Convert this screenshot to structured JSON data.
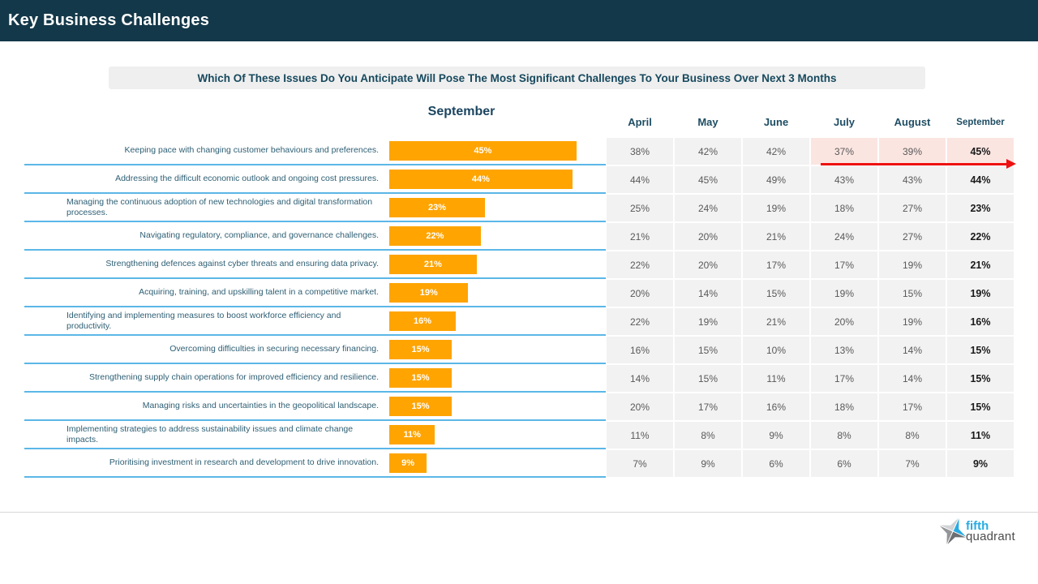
{
  "header": {
    "title": "Key Business Challenges"
  },
  "question": {
    "text": "Which Of These Issues Do You Anticipate Will Pose The Most Significant Challenges To Your Business Over Next 3 Months"
  },
  "chart": {
    "title": "September"
  },
  "chart_data": {
    "type": "bar",
    "orientation": "horizontal",
    "title": "September",
    "unit": "%",
    "xlim": [
      0,
      52
    ],
    "bar_color": "#FFA400",
    "categories": [
      "Keeping pace with changing customer behaviours and preferences.",
      "Addressing the difficult economic outlook and ongoing cost pressures.",
      "Managing the continuous adoption of new technologies and digital transformation processes.",
      "Navigating regulatory, compliance, and governance challenges.",
      "Strengthening defences against cyber threats and ensuring data privacy.",
      "Acquiring, training, and upskilling talent in a competitive market.",
      "Identifying and implementing measures to boost workforce efficiency and productivity.",
      "Overcoming difficulties in securing necessary financing.",
      "Strengthening supply chain operations for improved efficiency and resilience.",
      "Managing risks and uncertainties in the geopolitical landscape.",
      "Implementing strategies to address sustainability issues and climate change impacts.",
      "Prioritising investment in research and development to drive innovation."
    ],
    "values": [
      45,
      44,
      23,
      22,
      21,
      19,
      16,
      15,
      15,
      15,
      11,
      9
    ],
    "value_labels": [
      "45%",
      "44%",
      "23%",
      "22%",
      "21%",
      "19%",
      "16%",
      "15%",
      "15%",
      "15%",
      "11%",
      "9%"
    ]
  },
  "table": {
    "columns": [
      "April",
      "May",
      "June",
      "July",
      "August",
      "September"
    ],
    "rows": [
      [
        "38%",
        "42%",
        "42%",
        "37%",
        "39%",
        "45%"
      ],
      [
        "44%",
        "45%",
        "49%",
        "43%",
        "43%",
        "44%"
      ],
      [
        "25%",
        "24%",
        "19%",
        "18%",
        "27%",
        "23%"
      ],
      [
        "21%",
        "20%",
        "21%",
        "24%",
        "27%",
        "22%"
      ],
      [
        "22%",
        "20%",
        "17%",
        "17%",
        "19%",
        "21%"
      ],
      [
        "20%",
        "14%",
        "15%",
        "19%",
        "15%",
        "19%"
      ],
      [
        "22%",
        "19%",
        "21%",
        "20%",
        "19%",
        "16%"
      ],
      [
        "16%",
        "15%",
        "10%",
        "13%",
        "14%",
        "15%"
      ],
      [
        "14%",
        "15%",
        "11%",
        "17%",
        "14%",
        "15%"
      ],
      [
        "20%",
        "17%",
        "16%",
        "18%",
        "17%",
        "15%"
      ],
      [
        "11%",
        "8%",
        "9%",
        "8%",
        "8%",
        "11%"
      ],
      [
        "7%",
        "9%",
        "6%",
        "6%",
        "7%",
        "9%"
      ]
    ],
    "highlight": {
      "row_index": 0,
      "columns": [
        "July",
        "August",
        "September"
      ],
      "background": "#FBE5E1",
      "annotation": "red trend arrow from July to September"
    }
  },
  "logo": {
    "line1": "fifth",
    "line2": "quadrant"
  },
  "colors": {
    "topbar_bg": "#133849",
    "banner_bg": "#EFEFEF",
    "navy_text": "#1E4D63",
    "category_text": "#2E5F74",
    "bar_orange": "#FFA400",
    "separator_blue": "#5BB7E7",
    "cell_bg": "#F2F2F2",
    "cell_text": "#595959",
    "september_col_text": "#1A1A1A",
    "highlight_pink": "#FBE5E1",
    "arrow_red": "#EE1111",
    "logo_blue": "#29ABE2",
    "logo_gray": "#4D4D4F"
  }
}
